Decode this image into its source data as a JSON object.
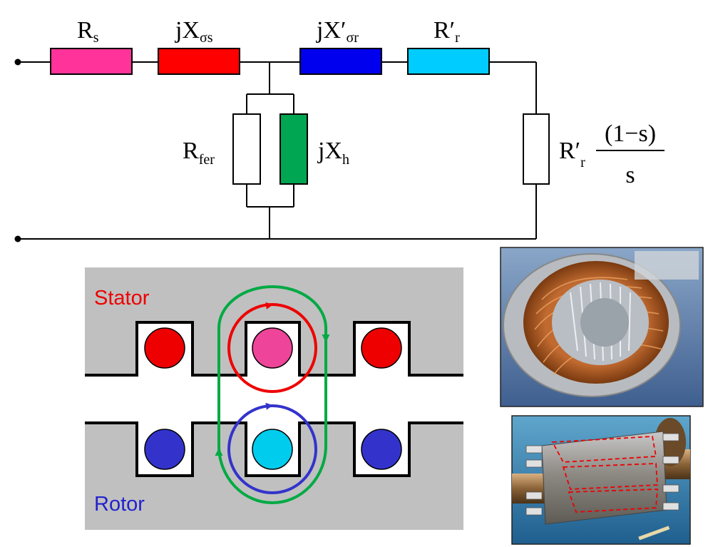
{
  "circuit": {
    "labels": {
      "rs_main": "R",
      "rs_sub": "s",
      "xss_main": "jX",
      "xss_sub": "σs",
      "xsr_main": "jX′",
      "xsr_sub": "σr",
      "rr_main": "R′",
      "rr_sub": "r",
      "rfer_main": "R",
      "rfer_sub": "fer",
      "xh_main": "jX",
      "xh_sub": "h",
      "load_main": "R′",
      "load_sub": "r",
      "load_num": "(1−s)",
      "load_den": "s"
    },
    "colors": {
      "rs": "#ff3399",
      "xss": "#ff0000",
      "xsr": "#0000ee",
      "rr": "#00ccff",
      "xh": "#00a651",
      "rfer": "#ffffff",
      "load": "#ffffff"
    }
  },
  "machine": {
    "stator_label": "Stator",
    "rotor_label": "Rotor",
    "colors": {
      "stator_label": "#ee0000",
      "rotor_label": "#2222cc",
      "iron": "#c0c0c0",
      "stator_conductor": "#ee0000",
      "stator_conductor_center": "#ee4499",
      "rotor_conductor": "#3333cc",
      "rotor_conductor_center": "#00ccee",
      "stator_flux": "#ee0000",
      "rotor_flux": "#3333cc",
      "main_flux": "#00aa44"
    }
  },
  "photos": {
    "stator_photo_icon": "stator-winding-photo",
    "rotor_photo_icon": "squirrel-cage-rotor-photo"
  }
}
